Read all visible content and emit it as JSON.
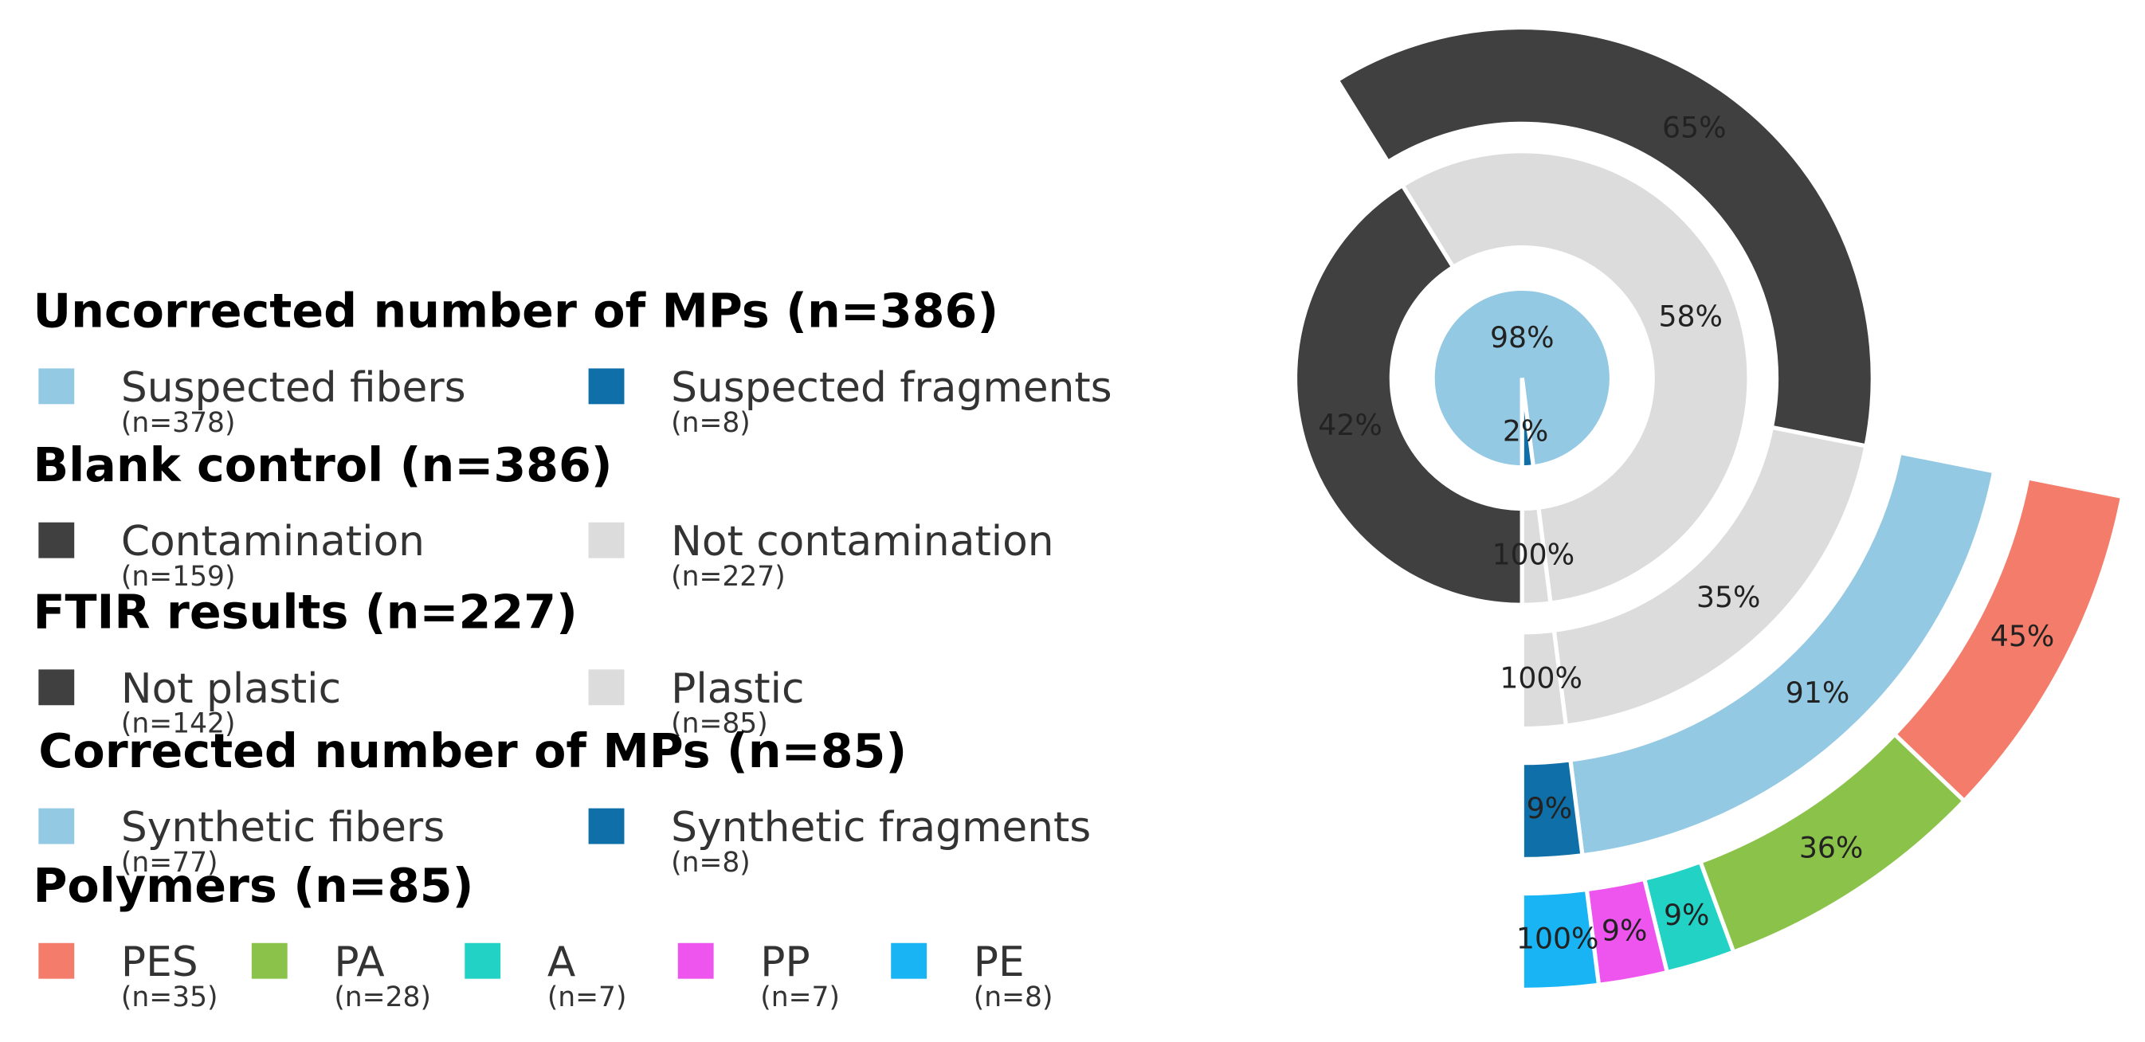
{
  "chart_data": {
    "type": "sunburst",
    "legend": [
      {
        "title": "Uncorrected number of MPs (n=386)",
        "items": [
          {
            "name": "Suspected fibers",
            "n": "(n=378)",
            "color": "#94c9e3"
          },
          {
            "name": "Suspected fragments",
            "n": "(n=8)",
            "color": "#0f6fa8"
          }
        ]
      },
      {
        "title": "Blank control (n=386)",
        "items": [
          {
            "name": "Contamination",
            "n": "(n=159)",
            "color": "#404040"
          },
          {
            "name": "Not contamination",
            "n": "(n=227)",
            "color": "#dcdcdc"
          }
        ]
      },
      {
        "title": "FTIR results (n=227)",
        "items": [
          {
            "name": "Not plastic",
            "n": "(n=142)",
            "color": "#404040"
          },
          {
            "name": "Plastic",
            "n": "(n=85)",
            "color": "#dcdcdc"
          }
        ]
      },
      {
        "title": "Corrected number of MPs (n=85)",
        "items": [
          {
            "name": "Synthetic fibers",
            "n": "(n=77)",
            "color": "#94c9e3"
          },
          {
            "name": "Synthetic fragments",
            "n": "(n=8)",
            "color": "#0f6fa8"
          }
        ]
      },
      {
        "title": "Polymers (n=85)",
        "items": [
          {
            "name": "PES",
            "n": "(n=35)",
            "color": "#f47c6a"
          },
          {
            "name": "PA",
            "n": "(n=28)",
            "color": "#8bc34a"
          },
          {
            "name": "A",
            "n": "(n=7)",
            "color": "#22d3c5"
          },
          {
            "name": "PP",
            "n": "(n=7)",
            "color": "#ee55ee"
          },
          {
            "name": "PE",
            "n": "(n=8)",
            "color": "#18b4f4"
          }
        ]
      }
    ],
    "tree": [
      {
        "value": 98,
        "value_label": "98%",
        "color": "#94c9e3",
        "children": [
          {
            "value": 42,
            "value_label": "42%",
            "color": "#404040"
          },
          {
            "value": 58,
            "value_label": "58%",
            "color": "#dcdcdc",
            "children": [
              {
                "value": 65,
                "value_label": "65%",
                "color": "#404040"
              },
              {
                "value": 35,
                "value_label": "35%",
                "color": "#dcdcdc",
                "children": [
                  {
                    "value": 91,
                    "value_label": "91%",
                    "color": "#94c9e3",
                    "children": [
                      {
                        "value": 45,
                        "value_label": "45%",
                        "color": "#f47c6a"
                      },
                      {
                        "value": 36,
                        "value_label": "36%",
                        "color": "#8bc34a"
                      },
                      {
                        "value": 9,
                        "value_label": "9%",
                        "color": "#22d3c5"
                      },
                      {
                        "value": 9,
                        "value_label": "9%",
                        "color": "#ee55ee"
                      }
                    ]
                  }
                ]
              }
            ]
          }
        ]
      },
      {
        "value": 2,
        "value_label": "2%",
        "color": "#0f6fa8",
        "children": [
          {
            "value": 100,
            "value_label": "100%",
            "color": "#dcdcdc",
            "children": [
              {
                "value": 100,
                "value_label": "100%",
                "color": "#dcdcdc",
                "children": [
                  {
                    "value": 9,
                    "value_label": "9%",
                    "color": "#0f6fa8",
                    "children": [
                      {
                        "value": 100,
                        "value_label": "100%",
                        "color": "#18b4f4"
                      }
                    ]
                  }
                ]
              }
            ]
          }
        ]
      }
    ]
  }
}
